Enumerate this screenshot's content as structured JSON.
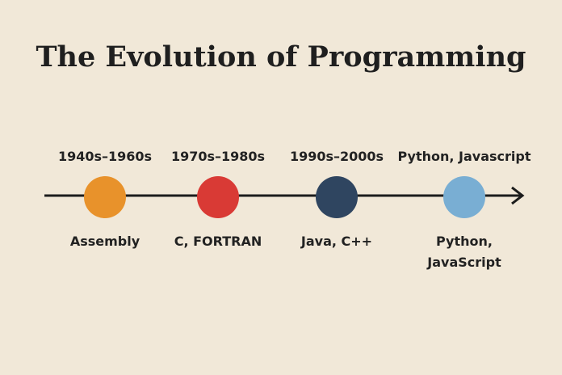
{
  "title": "The Evolution of Programming",
  "nodes": [
    {
      "period": "1940s–1960s",
      "label": [
        "Assembly"
      ]
    },
    {
      "period": "1970s–1980s",
      "label": [
        "C, FORTRAN"
      ]
    },
    {
      "period": "1990s–2000s",
      "label": [
        "Java, C++"
      ]
    },
    {
      "period": "Python, Javascript",
      "label": [
        "Python,",
        "JavaScript"
      ]
    }
  ]
}
